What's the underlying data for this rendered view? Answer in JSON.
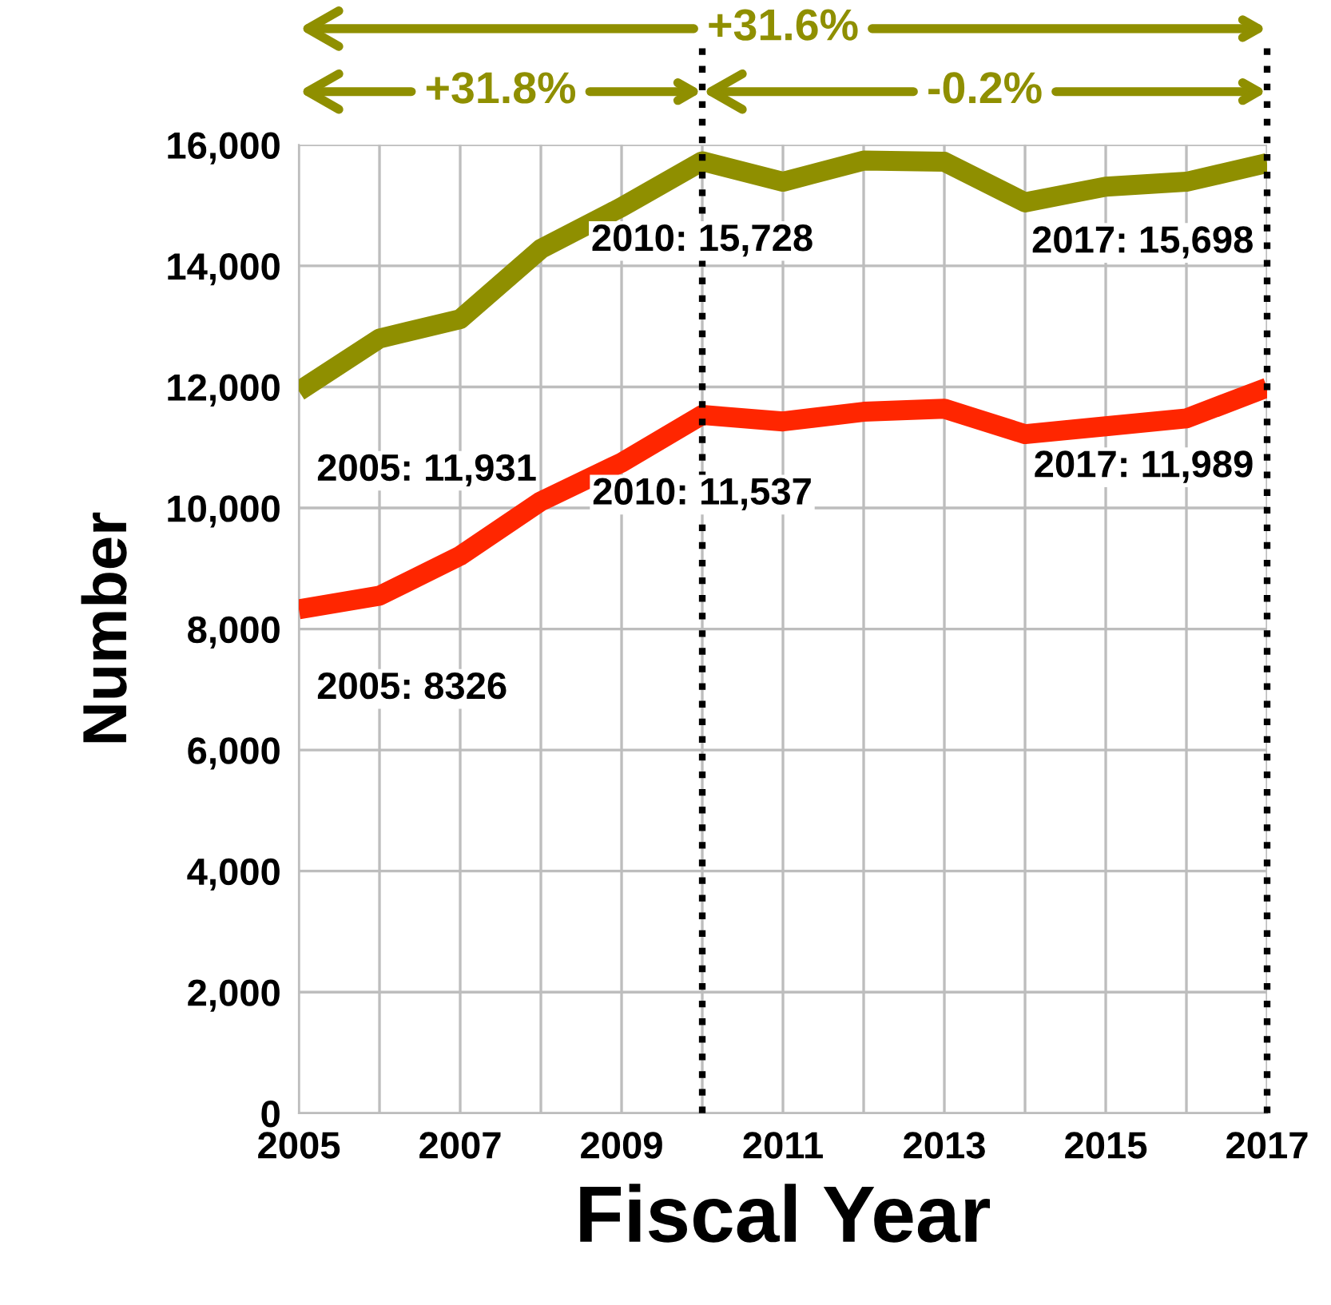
{
  "chart_data": {
    "type": "line",
    "xlabel": "Fiscal Year",
    "ylabel": "Number",
    "x": [
      2005,
      2006,
      2007,
      2008,
      2009,
      2010,
      2011,
      2012,
      2013,
      2014,
      2015,
      2016,
      2017
    ],
    "series": [
      {
        "color": "#8f8f00",
        "values": [
          11931,
          12800,
          13120,
          14280,
          14970,
          15728,
          15390,
          15740,
          15720,
          15050,
          15310,
          15390,
          15698
        ]
      },
      {
        "color": "#ff2600",
        "values": [
          8326,
          8550,
          9210,
          10110,
          10750,
          11537,
          11430,
          11590,
          11640,
          11220,
          11350,
          11480,
          11989
        ]
      }
    ],
    "xlim": [
      2005,
      2017
    ],
    "xticks": [
      2005,
      {
        "value": 2006,
        "label": null
      },
      2007,
      {
        "value": 2008,
        "label": null
      },
      2009,
      {
        "value": 2010,
        "label": null
      },
      2011,
      {
        "value": 2012,
        "label": null
      },
      2013,
      {
        "value": 2014,
        "label": null
      },
      2015,
      {
        "value": 2016,
        "label": null
      },
      2017
    ],
    "ylim": [
      0,
      16000
    ],
    "yticks": [
      0,
      {
        "value": 2000,
        "label": "2,000"
      },
      {
        "value": 4000,
        "label": "4,000"
      },
      {
        "value": 6000,
        "label": "6,000"
      },
      {
        "value": 8000,
        "label": "8,000"
      },
      {
        "value": 10000,
        "label": "10,000"
      },
      {
        "value": 12000,
        "label": "12,000"
      },
      {
        "value": 14000,
        "label": "14,000"
      },
      {
        "value": 16000,
        "label": "16,000"
      }
    ],
    "grid": true,
    "marker": "none",
    "line_style": "solid",
    "legend": false,
    "ref_lines": [
      {
        "axis": "x",
        "value": 2010,
        "color": "#000000",
        "line_style": "dotted"
      },
      {
        "axis": "x",
        "value": 2017,
        "color": "#000000",
        "line_style": "dotted"
      }
    ],
    "annotations": [
      "+31.6%",
      "+31.8%",
      "-0.2%",
      {
        "text": "2005: 11,931",
        "x": 2005,
        "y": 11931
      },
      {
        "text": "2010: 15,728",
        "x": 2010,
        "y": 15728
      },
      {
        "text": "2017: 15,698",
        "x": 2017,
        "y": 15698
      },
      {
        "text": "2005: 8326",
        "x": 2005,
        "y": 8326
      },
      {
        "text": "2010: 11,537",
        "x": 2010,
        "y": 11537
      },
      {
        "text": "2017: 11,989",
        "x": 2017,
        "y": 11989
      }
    ]
  }
}
